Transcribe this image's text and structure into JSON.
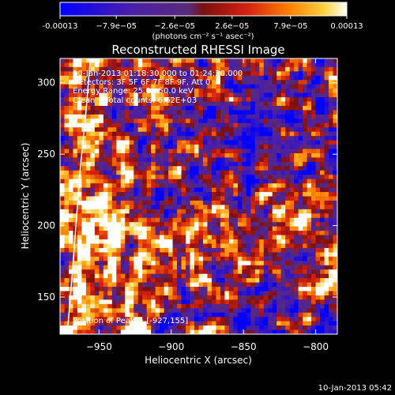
{
  "colorbar": {
    "tick_labels": [
      "-0.00013",
      "−7.9e−05",
      "−2.6e−05",
      "2.6e−05",
      "7.9e−05",
      "0.00013"
    ],
    "tick_values": [
      -0.00013,
      -7.9e-05,
      -2.6e-05,
      2.6e-05,
      7.9e-05,
      0.00013
    ],
    "unit_label": "(photons cm⁻² s⁻¹ asec⁻²)",
    "range": [
      -0.00013,
      0.00013
    ]
  },
  "chart_data": {
    "type": "heatmap",
    "title": "Reconstructed RHESSI Image",
    "xlabel": "Heliocentric X (arcsec)",
    "ylabel": "Heliocentric Y (arcsec)",
    "xlim": [
      -977,
      -785
    ],
    "ylim": [
      124,
      317
    ],
    "xticks": [
      -950,
      -900,
      -850,
      -800
    ],
    "xtick_labels": [
      "−950",
      "−900",
      "−850",
      "−800"
    ],
    "yticks": [
      150,
      200,
      250,
      300
    ],
    "ytick_labels": [
      "150",
      "200",
      "250",
      "300"
    ],
    "annotations": [
      "10-Jan-2013 01:18:30.000 to 01:24:30.000",
      "Detectors: 3F 5F 6F 7F 8F 9F, Att 0",
      "Energy Range: 25.0 - 50.0 keV",
      "Clean    Total counts: 6.62E+03"
    ],
    "peak_label": "Position of Peak = [-927,155]",
    "peak": [
      -927,
      155
    ],
    "limb_curve": {
      "x": [
        -956,
        -959,
        -963,
        -966,
        -969,
        -972
      ],
      "y": [
        317,
        280,
        240,
        200,
        160,
        124
      ]
    }
  },
  "footer": {
    "timestamp": "10-Jan-2013 05:42"
  }
}
